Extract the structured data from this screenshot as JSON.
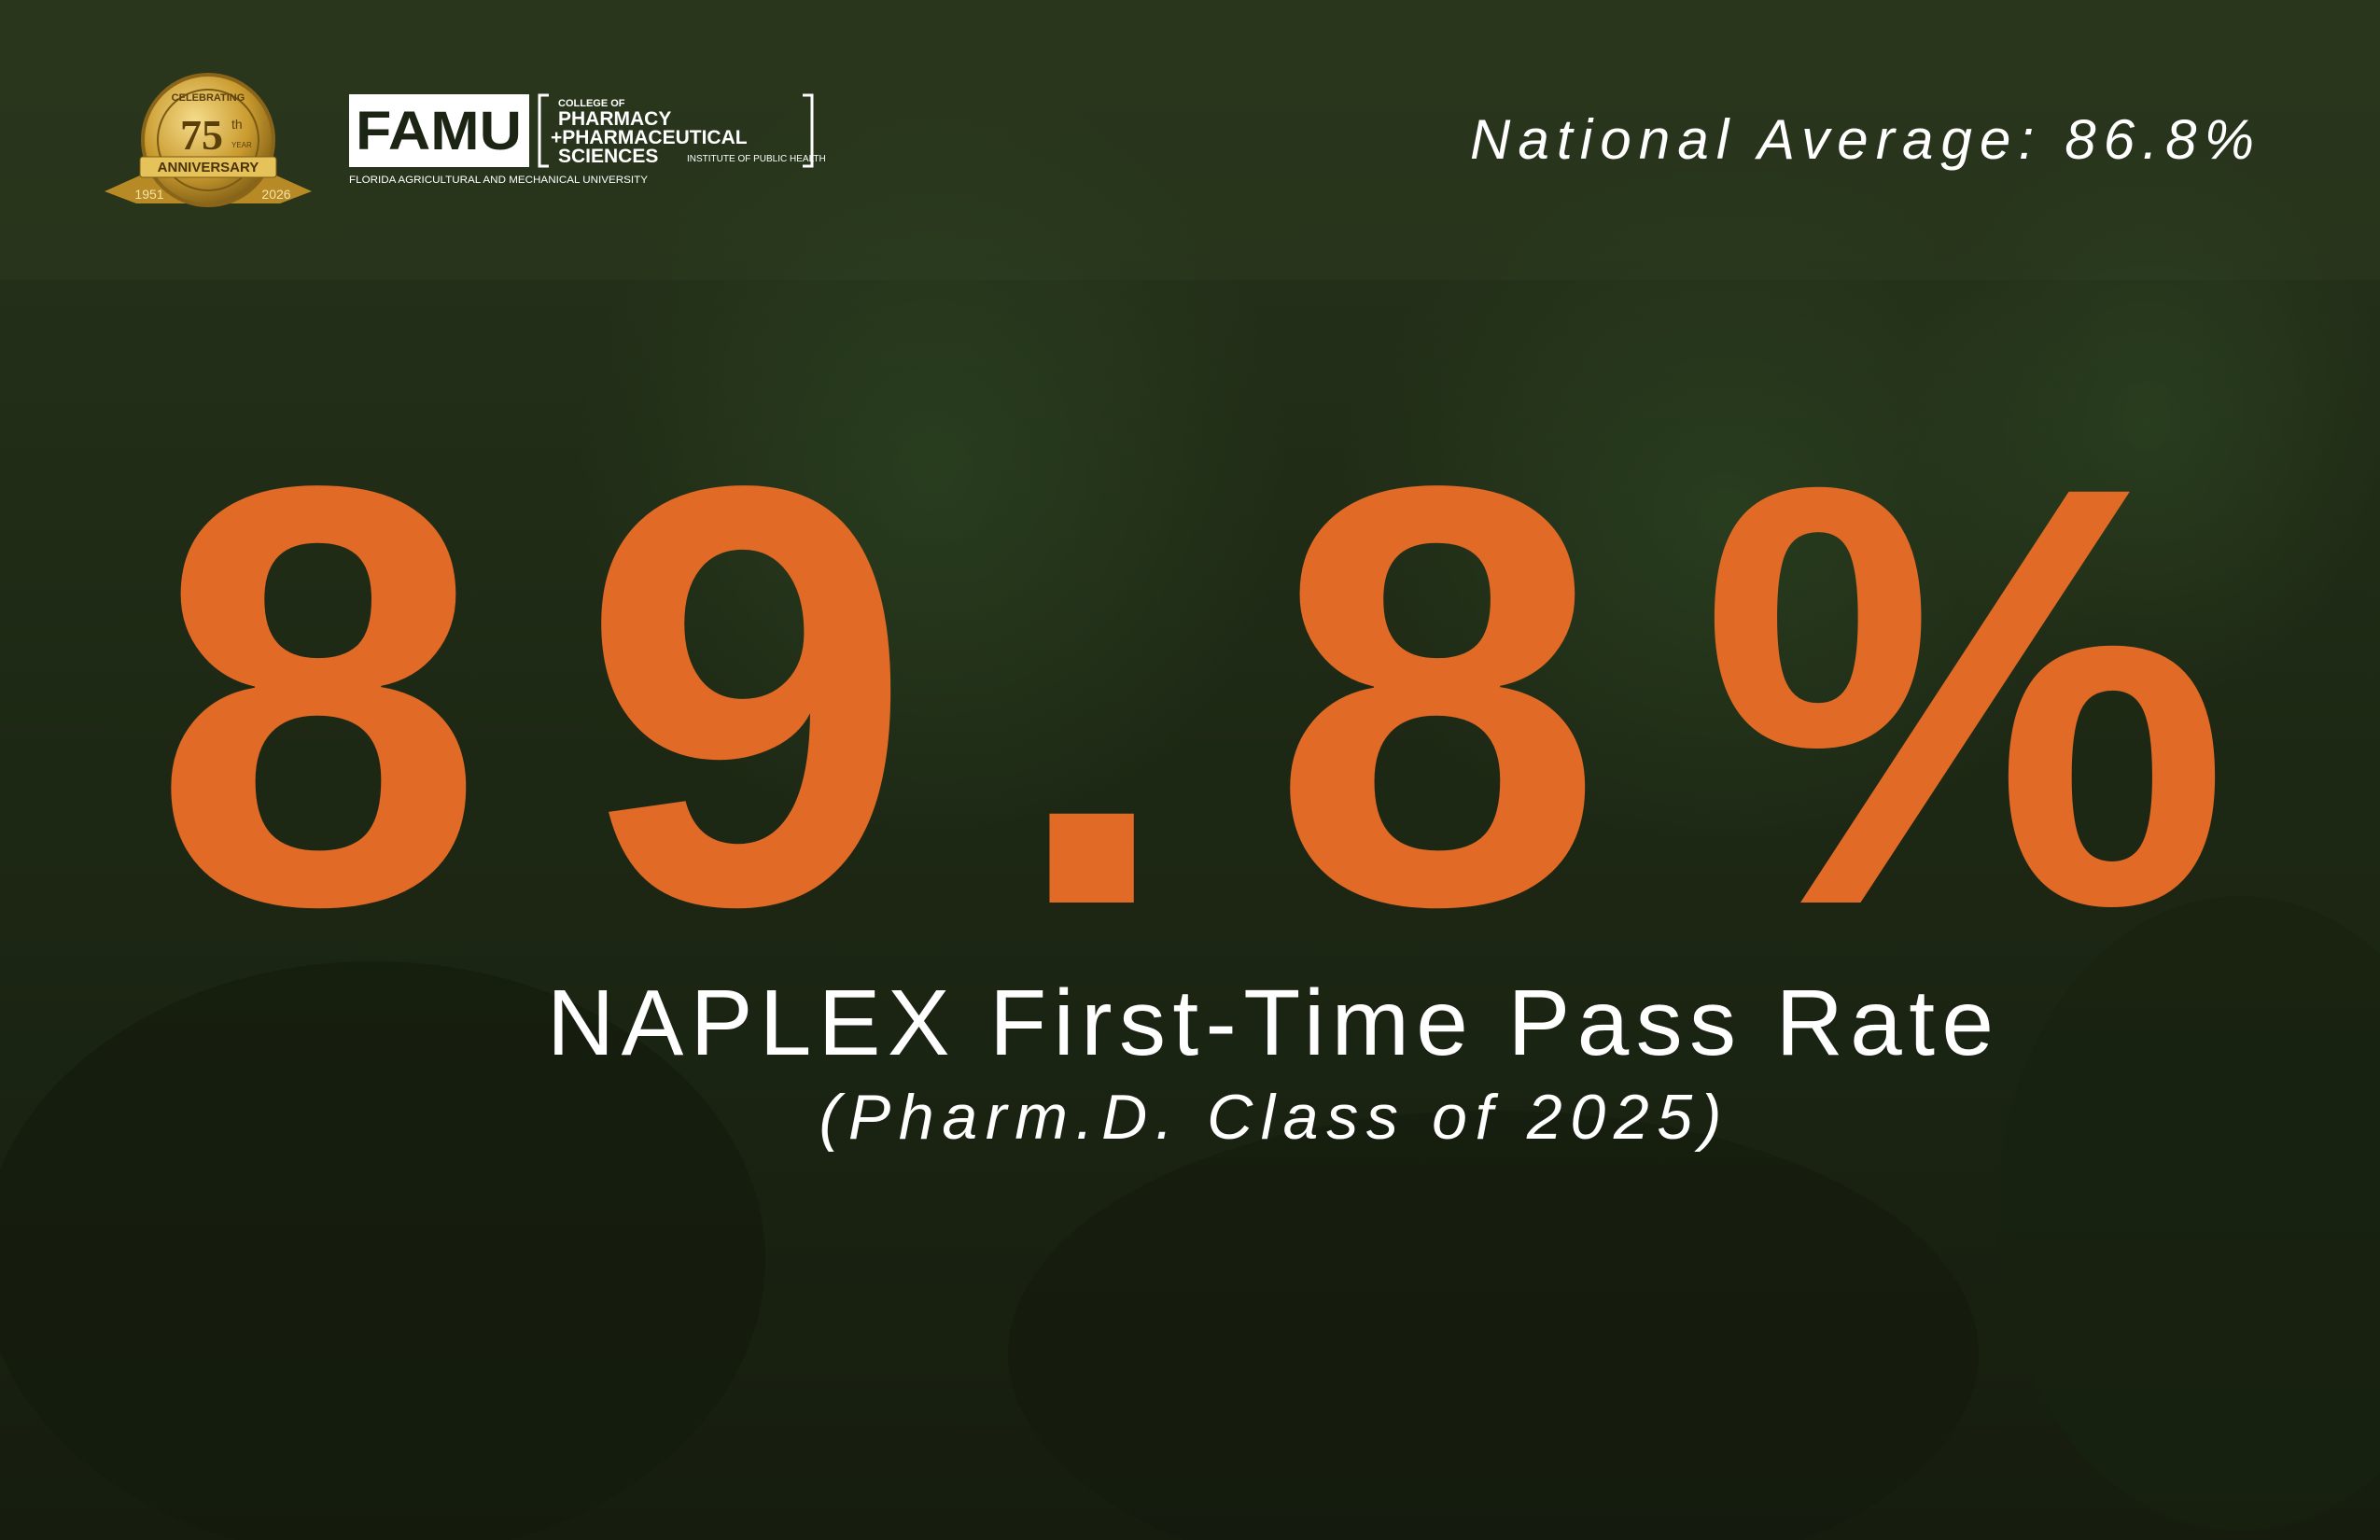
{
  "badge": {
    "top": "CELEBRATING",
    "number": "75",
    "suffix": "th",
    "year_word": "YEAR",
    "ribbon": "ANNIVERSARY",
    "start_year": "1951",
    "end_year": "2026"
  },
  "logo": {
    "wordmark": "FAMU",
    "college_of": "COLLEGE OF",
    "line1": "PHARMACY",
    "line2": "+PHARMACEUTICAL",
    "line3": "SCIENCES",
    "institute": "INSTITUTE OF PUBLIC HEALTH",
    "university": "FLORIDA AGRICULTURAL AND MECHANICAL UNIVERSITY"
  },
  "national_average": "National Average: 86.8%",
  "headline": "89.8%",
  "subtitle": "NAPLEX First-Time Pass Rate",
  "note": "(Pharm.D. Class of 2025)"
}
